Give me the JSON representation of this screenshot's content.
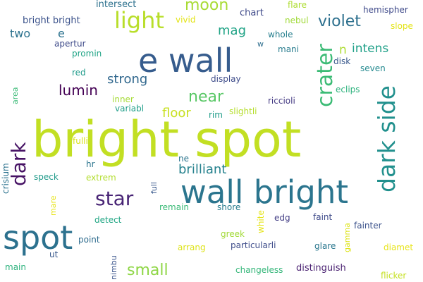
{
  "words": [
    {
      "text": "bright spot",
      "color": "#c2df23"
    },
    {
      "text": "wall bright",
      "color": "#2b758e"
    },
    {
      "text": "e wall",
      "color": "#365c8d"
    },
    {
      "text": "spot",
      "color": "#2c718e"
    },
    {
      "text": "light",
      "color": "#b8de29"
    },
    {
      "text": "dark side",
      "color": "#21908d"
    },
    {
      "text": "crater",
      "color": "#3bbb75"
    },
    {
      "text": "star",
      "color": "#482475"
    },
    {
      "text": "dark",
      "color": "#471365"
    },
    {
      "text": "violet",
      "color": "#2d708e"
    },
    {
      "text": "moon",
      "color": "#a8db34"
    },
    {
      "text": "near",
      "color": "#58c765"
    },
    {
      "text": "small",
      "color": "#8ed645"
    },
    {
      "text": "lumin",
      "color": "#440154"
    },
    {
      "text": "brilliant",
      "color": "#26828e"
    },
    {
      "text": "strong",
      "color": "#31688e"
    },
    {
      "text": "floor",
      "color": "#c8e020"
    },
    {
      "text": "mag",
      "color": "#20a386"
    },
    {
      "text": "intens",
      "color": "#1fa088"
    },
    {
      "text": "n",
      "color": "#addc30"
    },
    {
      "text": "two",
      "color": "#2c728e"
    },
    {
      "text": "e",
      "color": "#2c728e"
    },
    {
      "text": "bright bright",
      "color": "#3b528b"
    },
    {
      "text": "intersect",
      "color": "#2d718e"
    },
    {
      "text": "flare",
      "color": "#addc30"
    },
    {
      "text": "hemispher",
      "color": "#3e4989"
    },
    {
      "text": "chart",
      "color": "#3e4989"
    },
    {
      "text": "nebul",
      "color": "#a0da39"
    },
    {
      "text": "vivid",
      "color": "#e3e418"
    },
    {
      "text": "whole",
      "color": "#277f8e"
    },
    {
      "text": "slope",
      "color": "#e3e418"
    },
    {
      "text": "apertur",
      "color": "#3e4a89"
    },
    {
      "text": "promin",
      "color": "#20a486"
    },
    {
      "text": "mani",
      "color": "#287c8e"
    },
    {
      "text": "w",
      "color": "#2e6e8e"
    },
    {
      "text": "disk",
      "color": "#38588c"
    },
    {
      "text": "seven",
      "color": "#23898e"
    },
    {
      "text": "red",
      "color": "#1e9b8a"
    },
    {
      "text": "display",
      "color": "#3e4c8a"
    },
    {
      "text": "eclips",
      "color": "#2db27d"
    },
    {
      "text": "area",
      "color": "#3aba76"
    },
    {
      "text": "inner",
      "color": "#a5db36"
    },
    {
      "text": "variabl",
      "color": "#1f9e89"
    },
    {
      "text": "rim",
      "color": "#1e9c89"
    },
    {
      "text": "riccioli",
      "color": "#443a83"
    },
    {
      "text": "slightli",
      "color": "#b5de2b"
    },
    {
      "text": "fulli",
      "color": "#d8e219"
    },
    {
      "text": "ne",
      "color": "#2b748e"
    },
    {
      "text": "hr",
      "color": "#2b758e"
    },
    {
      "text": "crisium",
      "color": "#2c728e"
    },
    {
      "text": "speck",
      "color": "#1f9a8a"
    },
    {
      "text": "extrem",
      "color": "#b2dd2d"
    },
    {
      "text": "full",
      "color": "#38598c"
    },
    {
      "text": "remain",
      "color": "#3aba76"
    },
    {
      "text": "shore",
      "color": "#287d8e"
    },
    {
      "text": "white",
      "color": "#e5e419"
    },
    {
      "text": "mare",
      "color": "#e7e419"
    },
    {
      "text": "detect",
      "color": "#22a785"
    },
    {
      "text": "edg",
      "color": "#433e85"
    },
    {
      "text": "faint",
      "color": "#3e4a89"
    },
    {
      "text": "fainter",
      "color": "#3b528b"
    },
    {
      "text": "greek",
      "color": "#a2da37"
    },
    {
      "text": "point",
      "color": "#2f6c8e"
    },
    {
      "text": "ut",
      "color": "#38588c"
    },
    {
      "text": "arrang",
      "color": "#dde318"
    },
    {
      "text": "particularli",
      "color": "#3e4c8a"
    },
    {
      "text": "glare",
      "color": "#2a778e"
    },
    {
      "text": "gamma",
      "color": "#dde318"
    },
    {
      "text": "diamet",
      "color": "#e7e419"
    },
    {
      "text": "main",
      "color": "#2db27d"
    },
    {
      "text": "nimbu",
      "color": "#3a548c"
    },
    {
      "text": "changeless",
      "color": "#34b679"
    },
    {
      "text": "distinguish",
      "color": "#481f70"
    },
    {
      "text": "flicker",
      "color": "#c5e021"
    }
  ]
}
